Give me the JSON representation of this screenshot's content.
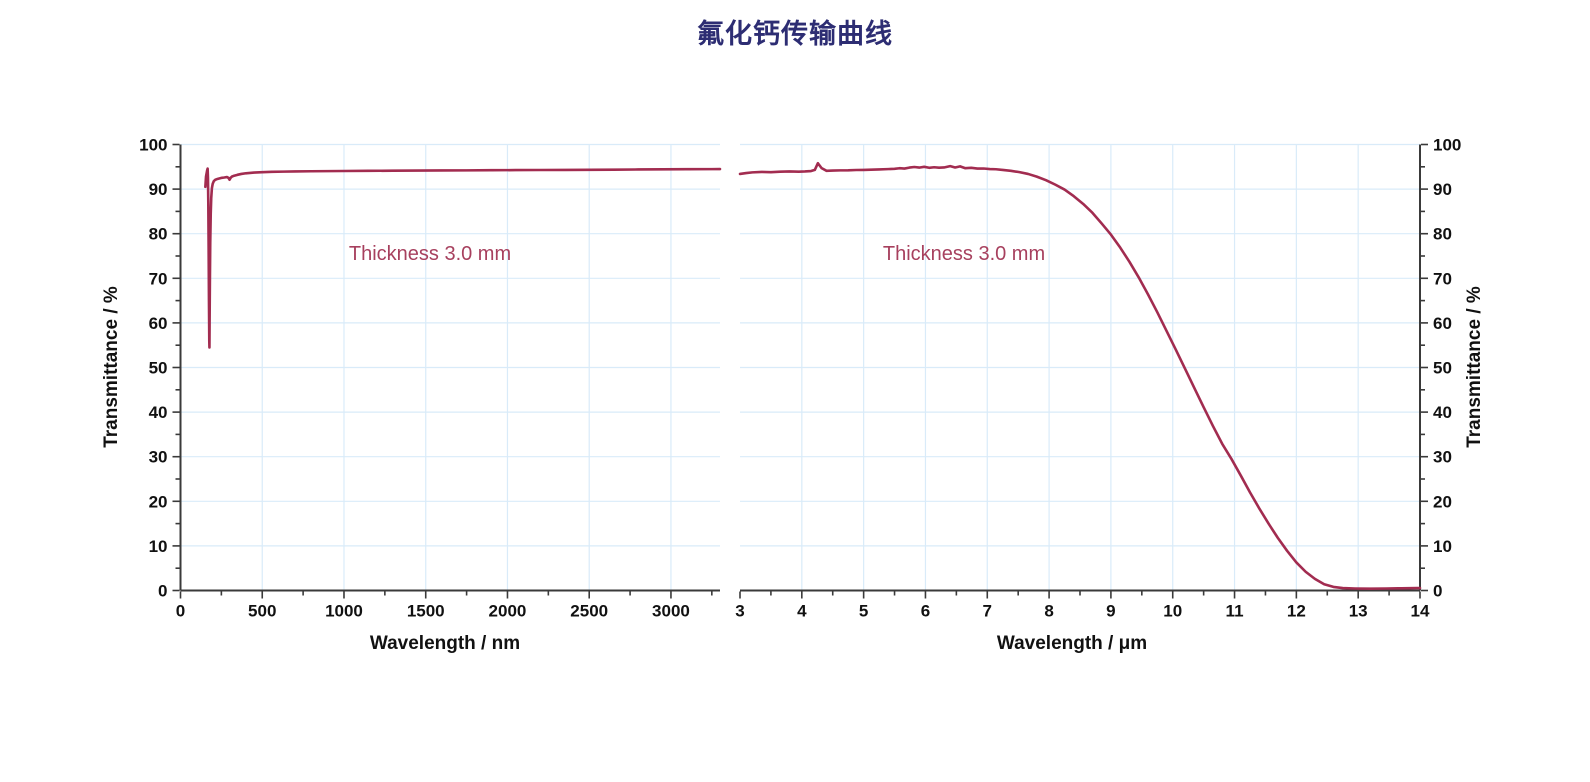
{
  "title": "氟化钙传输曲线",
  "title_color": "#2D2D73",
  "chart_data": {
    "type": "line",
    "title": "氟化钙传输曲线",
    "grid": true,
    "legend": "none",
    "grid_color": "#D9EBF9",
    "axis_color": "#3A3A3A",
    "tick_label_color": "#111111",
    "annotation_color": "#A7405E",
    "panels": [
      {
        "xlabel": "Wavelength / nm",
        "ylabel": "Transmittance / %",
        "annotation": "Thickness 3.0 mm",
        "x_axis": {
          "min": 0,
          "max": 3300,
          "major": 500,
          "minor": 250,
          "tick_labels": [
            0,
            500,
            1000,
            1500,
            2000,
            2500,
            3000
          ]
        },
        "y_axis": {
          "min": 0,
          "max": 100,
          "major": 10,
          "minor": 5,
          "side": "left",
          "tick_labels": [
            0,
            10,
            20,
            30,
            40,
            50,
            60,
            70,
            80,
            90,
            100
          ]
        },
        "series": [
          {
            "color": "#A22C50",
            "points": [
              [
                152,
                90.5
              ],
              [
                156,
                92.8
              ],
              [
                160,
                93.6
              ],
              [
                163,
                94.2
              ],
              [
                166,
                94.6
              ],
              [
                168,
                92.5
              ],
              [
                170,
                87
              ],
              [
                172,
                77
              ],
              [
                174,
                65
              ],
              [
                176,
                56
              ],
              [
                177,
                54.5
              ],
              [
                178,
                60
              ],
              [
                180,
                70
              ],
              [
                182,
                78
              ],
              [
                185,
                84.5
              ],
              [
                188,
                88
              ],
              [
                192,
                90.2
              ],
              [
                197,
                91.2
              ],
              [
                204,
                91.8
              ],
              [
                213,
                92.1
              ],
              [
                228,
                92.3
              ],
              [
                248,
                92.5
              ],
              [
                268,
                92.6
              ],
              [
                284,
                92.7
              ],
              [
                294,
                92.5
              ],
              [
                300,
                92.1
              ],
              [
                306,
                92.5
              ],
              [
                314,
                92.8
              ],
              [
                328,
                93.0
              ],
              [
                348,
                93.2
              ],
              [
                372,
                93.4
              ],
              [
                400,
                93.55
              ],
              [
                450,
                93.7
              ],
              [
                500,
                93.8
              ],
              [
                560,
                93.87
              ],
              [
                630,
                93.92
              ],
              [
                700,
                93.97
              ],
              [
                800,
                94.0
              ],
              [
                900,
                94.03
              ],
              [
                1000,
                94.06
              ],
              [
                1150,
                94.1
              ],
              [
                1300,
                94.12
              ],
              [
                1450,
                94.15
              ],
              [
                1600,
                94.18
              ],
              [
                1750,
                94.2
              ],
              [
                1900,
                94.23
              ],
              [
                2050,
                94.26
              ],
              [
                2200,
                94.28
              ],
              [
                2350,
                94.3
              ],
              [
                2500,
                94.33
              ],
              [
                2650,
                94.36
              ],
              [
                2800,
                94.4
              ],
              [
                2950,
                94.43
              ],
              [
                3100,
                94.46
              ],
              [
                3250,
                94.48
              ],
              [
                3300,
                94.5
              ]
            ]
          }
        ]
      },
      {
        "xlabel": "Wavelength / μm",
        "ylabel": "Transmittance / %",
        "annotation": "Thickness 3.0 mm",
        "x_axis": {
          "min": 3,
          "max": 14,
          "major": 1,
          "minor": 0.5,
          "tick_labels": [
            3,
            4,
            5,
            6,
            7,
            8,
            9,
            10,
            11,
            12,
            13,
            14
          ]
        },
        "y_axis": {
          "min": 0,
          "max": 100,
          "major": 10,
          "minor": 5,
          "side": "right",
          "tick_labels": [
            0,
            10,
            20,
            30,
            40,
            50,
            60,
            70,
            80,
            90,
            100
          ]
        },
        "series": [
          {
            "color": "#A22C50",
            "points": [
              [
                3.0,
                93.4
              ],
              [
                3.1,
                93.6
              ],
              [
                3.2,
                93.75
              ],
              [
                3.35,
                93.85
              ],
              [
                3.5,
                93.8
              ],
              [
                3.65,
                93.9
              ],
              [
                3.8,
                93.95
              ],
              [
                3.95,
                93.9
              ],
              [
                4.05,
                93.95
              ],
              [
                4.15,
                94.05
              ],
              [
                4.21,
                94.3
              ],
              [
                4.26,
                95.8
              ],
              [
                4.32,
                94.7
              ],
              [
                4.4,
                94.1
              ],
              [
                4.5,
                94.15
              ],
              [
                4.62,
                94.2
              ],
              [
                4.75,
                94.22
              ],
              [
                4.88,
                94.28
              ],
              [
                5.0,
                94.3
              ],
              [
                5.12,
                94.35
              ],
              [
                5.25,
                94.42
              ],
              [
                5.38,
                94.48
              ],
              [
                5.5,
                94.55
              ],
              [
                5.58,
                94.68
              ],
              [
                5.66,
                94.6
              ],
              [
                5.74,
                94.82
              ],
              [
                5.82,
                94.95
              ],
              [
                5.9,
                94.82
              ],
              [
                5.98,
                95.0
              ],
              [
                6.06,
                94.78
              ],
              [
                6.14,
                94.9
              ],
              [
                6.22,
                94.8
              ],
              [
                6.3,
                94.85
              ],
              [
                6.4,
                95.15
              ],
              [
                6.48,
                94.85
              ],
              [
                6.56,
                95.1
              ],
              [
                6.64,
                94.7
              ],
              [
                6.74,
                94.78
              ],
              [
                6.84,
                94.6
              ],
              [
                6.94,
                94.62
              ],
              [
                7.04,
                94.5
              ],
              [
                7.14,
                94.45
              ],
              [
                7.25,
                94.3
              ],
              [
                7.38,
                94.1
              ],
              [
                7.52,
                93.8
              ],
              [
                7.66,
                93.4
              ],
              [
                7.8,
                92.8
              ],
              [
                7.95,
                92.0
              ],
              [
                8.1,
                91.0
              ],
              [
                8.25,
                89.9
              ],
              [
                8.4,
                88.4
              ],
              [
                8.55,
                86.7
              ],
              [
                8.7,
                84.7
              ],
              [
                8.85,
                82.3
              ],
              [
                9.0,
                79.8
              ],
              [
                9.15,
                76.9
              ],
              [
                9.3,
                73.7
              ],
              [
                9.45,
                70.2
              ],
              [
                9.6,
                66.4
              ],
              [
                9.75,
                62.4
              ],
              [
                9.9,
                58.2
              ],
              [
                10.05,
                54.0
              ],
              [
                10.2,
                49.7
              ],
              [
                10.35,
                45.4
              ],
              [
                10.5,
                41.1
              ],
              [
                10.65,
                36.9
              ],
              [
                10.8,
                32.9
              ],
              [
                10.95,
                29.5
              ],
              [
                11.1,
                25.8
              ],
              [
                11.25,
                22.0
              ],
              [
                11.4,
                18.4
              ],
              [
                11.55,
                15.0
              ],
              [
                11.7,
                11.8
              ],
              [
                11.85,
                8.9
              ],
              [
                12.0,
                6.3
              ],
              [
                12.15,
                4.2
              ],
              [
                12.3,
                2.6
              ],
              [
                12.45,
                1.4
              ],
              [
                12.6,
                0.8
              ],
              [
                12.75,
                0.55
              ],
              [
                12.95,
                0.45
              ],
              [
                13.2,
                0.4
              ],
              [
                13.45,
                0.45
              ],
              [
                13.7,
                0.5
              ],
              [
                13.95,
                0.55
              ],
              [
                14.0,
                0.55
              ]
            ]
          }
        ]
      }
    ]
  }
}
